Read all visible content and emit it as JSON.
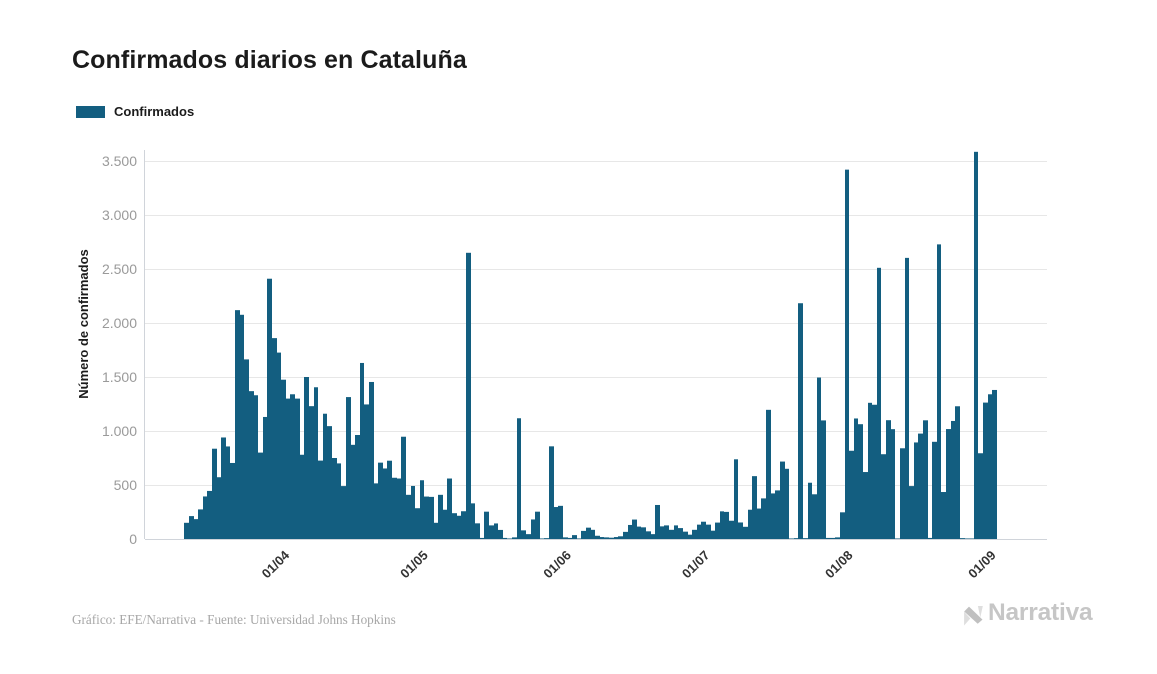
{
  "chart": {
    "title": "Confirmados diarios en Cataluña",
    "legend": {
      "label": "Confirmados"
    },
    "y_axis": {
      "title": "Número de confirmados",
      "tick_labels": [
        "0",
        "500",
        "1.000",
        "1.500",
        "2.000",
        "2.500",
        "3.000",
        "3.500"
      ],
      "min": 0,
      "max": 3500,
      "tick_step": 500
    },
    "x_axis": {
      "tick_labels": [
        "01/04",
        "01/05",
        "01/06",
        "01/07",
        "01/08",
        "01/09"
      ],
      "tick_day_indices": [
        22,
        52,
        83,
        113,
        144,
        175
      ]
    }
  },
  "chart_data": {
    "type": "bar",
    "title": "Confirmados diarios en Cataluña",
    "series": [
      {
        "name": "Confirmados",
        "values": [
          150,
          212,
          184,
          274,
          394,
          445,
          836,
          572,
          940,
          857,
          704,
          2119,
          2076,
          1663,
          1369,
          1331,
          800,
          1130,
          2410,
          1860,
          1726,
          1475,
          1300,
          1340,
          1300,
          780,
          1500,
          1230,
          1405,
          726,
          1160,
          1045,
          750,
          700,
          490,
          1314,
          872,
          963,
          1630,
          1246,
          1454,
          515,
          707,
          653,
          725,
          567,
          560,
          947,
          409,
          491,
          285,
          544,
          393,
          390,
          150,
          409,
          271,
          560,
          239,
          215,
          257,
          2650,
          330,
          145,
          10,
          253,
          126,
          144,
          84,
          10,
          5,
          15,
          1118,
          80,
          45,
          181,
          253,
          5,
          8,
          858,
          296,
          307,
          15,
          10,
          36,
          5,
          75,
          105,
          85,
          30,
          18,
          15,
          12,
          18,
          25,
          66,
          130,
          180,
          115,
          108,
          71,
          45,
          315,
          117,
          126,
          85,
          126,
          101,
          68,
          40,
          85,
          133,
          160,
          133,
          77,
          152,
          256,
          251,
          169,
          738,
          153,
          113,
          271,
          582,
          282,
          376,
          1196,
          422,
          450,
          717,
          650,
          5,
          8,
          2183,
          8,
          521,
          414,
          1495,
          1098,
          10,
          10,
          15,
          247,
          3420,
          817,
          1116,
          1063,
          620,
          1261,
          1243,
          2511,
          785,
          1100,
          1017,
          5,
          840,
          2603,
          490,
          894,
          976,
          1099,
          10,
          900,
          2728,
          435,
          1018,
          1093,
          1229,
          8,
          5,
          5,
          3585,
          794,
          1263,
          1340,
          1380
        ]
      }
    ],
    "x_dates": [
      "2020-03-10",
      "2020-03-11",
      "2020-03-12",
      "2020-03-13",
      "2020-03-14",
      "2020-03-15",
      "2020-03-16",
      "2020-03-17",
      "2020-03-18",
      "2020-03-19",
      "2020-03-20",
      "2020-03-21",
      "2020-03-22",
      "2020-03-23",
      "2020-03-24",
      "2020-03-25",
      "2020-03-26",
      "2020-03-27",
      "2020-03-28",
      "2020-03-29",
      "2020-03-30",
      "2020-03-31",
      "2020-04-01",
      "2020-04-02",
      "2020-04-03",
      "2020-04-04",
      "2020-04-05",
      "2020-04-06",
      "2020-04-07",
      "2020-04-08",
      "2020-04-09",
      "2020-04-10",
      "2020-04-11",
      "2020-04-12",
      "2020-04-13",
      "2020-04-14",
      "2020-04-15",
      "2020-04-16",
      "2020-04-17",
      "2020-04-18",
      "2020-04-19",
      "2020-04-20",
      "2020-04-21",
      "2020-04-22",
      "2020-04-23",
      "2020-04-24",
      "2020-04-25",
      "2020-04-26",
      "2020-04-27",
      "2020-04-28",
      "2020-04-29",
      "2020-04-30",
      "2020-05-01",
      "2020-05-02",
      "2020-05-03",
      "2020-05-04",
      "2020-05-05",
      "2020-05-06",
      "2020-05-07",
      "2020-05-08",
      "2020-05-09",
      "2020-05-10",
      "2020-05-11",
      "2020-05-12",
      "2020-05-13",
      "2020-05-14",
      "2020-05-15",
      "2020-05-16",
      "2020-05-17",
      "2020-05-18",
      "2020-05-19",
      "2020-05-20",
      "2020-05-21",
      "2020-05-22",
      "2020-05-23",
      "2020-05-24",
      "2020-05-25",
      "2020-05-26",
      "2020-05-27",
      "2020-05-28",
      "2020-05-29",
      "2020-05-30",
      "2020-05-31",
      "2020-06-01",
      "2020-06-02",
      "2020-06-03",
      "2020-06-04",
      "2020-06-05",
      "2020-06-06",
      "2020-06-07",
      "2020-06-08",
      "2020-06-09",
      "2020-06-10",
      "2020-06-11",
      "2020-06-12",
      "2020-06-13",
      "2020-06-14",
      "2020-06-15",
      "2020-06-16",
      "2020-06-17",
      "2020-06-18",
      "2020-06-19",
      "2020-06-20",
      "2020-06-21",
      "2020-06-22",
      "2020-06-23",
      "2020-06-24",
      "2020-06-25",
      "2020-06-26",
      "2020-06-27",
      "2020-06-28",
      "2020-06-29",
      "2020-06-30",
      "2020-07-01",
      "2020-07-02",
      "2020-07-03",
      "2020-07-04",
      "2020-07-05",
      "2020-07-06",
      "2020-07-07",
      "2020-07-08",
      "2020-07-09",
      "2020-07-10",
      "2020-07-11",
      "2020-07-12",
      "2020-07-13",
      "2020-07-14",
      "2020-07-15",
      "2020-07-16",
      "2020-07-17",
      "2020-07-18",
      "2020-07-19",
      "2020-07-20",
      "2020-07-21",
      "2020-07-22",
      "2020-07-23",
      "2020-07-24",
      "2020-07-25",
      "2020-07-26",
      "2020-07-27",
      "2020-07-28",
      "2020-07-29",
      "2020-07-30",
      "2020-07-31",
      "2020-08-01",
      "2020-08-02",
      "2020-08-03",
      "2020-08-04",
      "2020-08-05",
      "2020-08-06",
      "2020-08-07",
      "2020-08-08",
      "2020-08-09",
      "2020-08-10",
      "2020-08-11",
      "2020-08-12",
      "2020-08-13",
      "2020-08-14",
      "2020-08-15",
      "2020-08-16",
      "2020-08-17",
      "2020-08-18",
      "2020-08-19",
      "2020-08-20",
      "2020-08-21",
      "2020-08-22",
      "2020-08-23",
      "2020-08-24",
      "2020-08-25",
      "2020-08-26",
      "2020-08-27",
      "2020-08-28",
      "2020-08-29",
      "2020-08-30",
      "2020-08-31",
      "2020-09-01"
    ],
    "xlabel": "",
    "ylabel": "Número de confirmados",
    "ylim": [
      0,
      3500
    ],
    "ytick_labels": [
      "0",
      "500",
      "1.000",
      "1.500",
      "2.000",
      "2.500",
      "3.000",
      "3.500"
    ],
    "xtick_labels": [
      "01/04",
      "01/05",
      "01/06",
      "01/07",
      "01/08",
      "01/09"
    ],
    "grid": true,
    "legend_position": "top-left"
  },
  "footer": {
    "credit": "Gráfico: EFE/Narrativa - Fuente: Universidad Johns Hopkins",
    "logo_text": "Narrativa"
  },
  "colors": {
    "bar": "#135e80",
    "grid": "#e7e7e7",
    "axis_line": "#d0d4da",
    "y_tick_text": "#9a9a9a",
    "x_tick_text": "#333333",
    "title_text": "#1b1b1b",
    "footer_text": "#a7a7a7",
    "logo_text": "#c7c7c7",
    "logo_mark_light": "#dedede",
    "logo_mark_dark": "#bdbdbd"
  }
}
